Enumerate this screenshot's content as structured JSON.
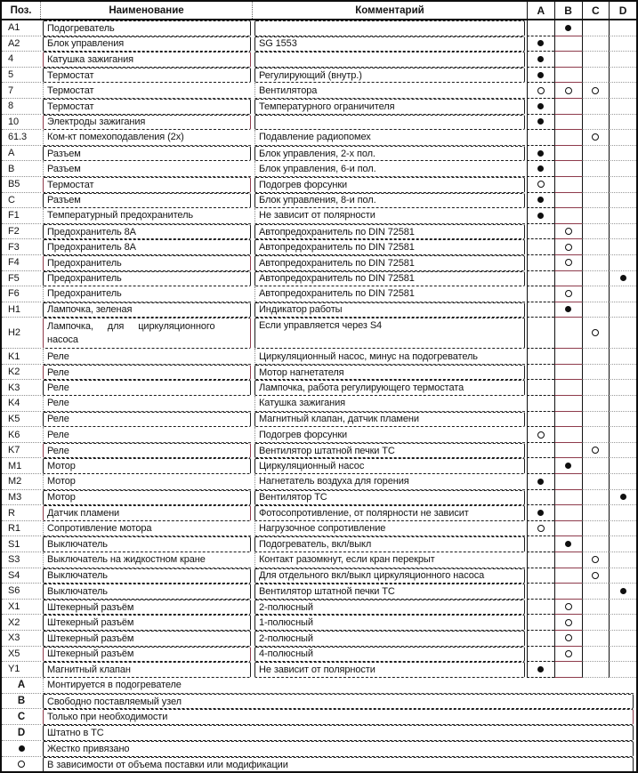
{
  "colors": {
    "line": "#1a1a1a",
    "accent_maroon": "#8e3b4c",
    "background": "#ffffff"
  },
  "table": {
    "headers": {
      "pos": "Поз.",
      "name": "Наименование",
      "comment": "Комментарий",
      "marks": [
        "A",
        "B",
        "C",
        "D"
      ]
    },
    "rows": [
      {
        "pos": "A1",
        "name": "Подогреватель",
        "comment": "",
        "marks": [
          "",
          "dot",
          "",
          ""
        ],
        "boxed": true
      },
      {
        "pos": "A2",
        "name": "Блок управления",
        "comment": "SG 1553",
        "marks": [
          "dot",
          "",
          "",
          ""
        ],
        "boxed": true
      },
      {
        "pos": "4",
        "name": "Катушка зажигания",
        "comment": "",
        "marks": [
          "dot",
          "",
          "",
          ""
        ],
        "boxed": true,
        "accent": true
      },
      {
        "pos": "5",
        "name": "Термостат",
        "comment": "Регулирующий (внутр.)",
        "marks": [
          "dot",
          "",
          "",
          ""
        ],
        "boxed": true
      },
      {
        "pos": "7",
        "name": "Термостат",
        "comment": "Вентилятора",
        "marks": [
          "circle",
          "circle",
          "circle",
          ""
        ],
        "boxed": false
      },
      {
        "pos": "8",
        "name": "Термостат",
        "comment": "Температурного ограничителя",
        "marks": [
          "dot",
          "",
          "",
          ""
        ],
        "boxed": true
      },
      {
        "pos": "10",
        "name": "Электроды зажигания",
        "comment": "",
        "marks": [
          "dot",
          "",
          "",
          ""
        ],
        "boxed": true,
        "accent": true
      },
      {
        "pos": "61.3",
        "name": "Ком-кт помехоподавления (2х)",
        "comment": "Подавление радиопомех",
        "marks": [
          "",
          "",
          "circle",
          ""
        ],
        "boxed": false
      },
      {
        "pos": "A",
        "name": "Разъем",
        "comment": "Блок управления, 2-х пол.",
        "marks": [
          "dot",
          "",
          "",
          ""
        ],
        "boxed": true
      },
      {
        "pos": "B",
        "name": "Разъем",
        "comment": "Блок управления, 6-и пол.",
        "marks": [
          "dot",
          "",
          "",
          ""
        ],
        "boxed": false
      },
      {
        "pos": "B5",
        "name": "Термостат",
        "comment": "Подогрев форсунки",
        "marks": [
          "circle",
          "",
          "",
          ""
        ],
        "boxed": true,
        "accent": true
      },
      {
        "pos": "C",
        "name": "Разъем",
        "comment": "Блок управления, 8-и пол.",
        "marks": [
          "dot",
          "",
          "",
          ""
        ],
        "boxed": true
      },
      {
        "pos": "F1",
        "name": "Температурный предохранитель",
        "comment": "Не зависит от полярности",
        "marks": [
          "dot",
          "",
          "",
          ""
        ],
        "boxed": false
      },
      {
        "pos": "F2",
        "name": "Предохранитель 8А",
        "comment": "Автопредохранитель по DIN 72581",
        "marks": [
          "",
          "circle",
          "",
          ""
        ],
        "boxed": true
      },
      {
        "pos": "F3",
        "name": "Предохранитель 8А",
        "comment": "Автопредохранитель по DIN 72581",
        "marks": [
          "",
          "circle",
          "",
          ""
        ],
        "boxed": true
      },
      {
        "pos": "F4",
        "name": "Предохранитель",
        "comment": "Автопредохранитель по DIN 72581",
        "marks": [
          "",
          "circle",
          "",
          ""
        ],
        "boxed": true,
        "accent": true
      },
      {
        "pos": "F5",
        "name": "Предохранитель",
        "comment": "Автопредохранитель по DIN 72581",
        "marks": [
          "",
          "",
          "",
          "dot"
        ],
        "boxed": true
      },
      {
        "pos": "F6",
        "name": "Предохранитель",
        "comment": "Автопредохранитель по DIN 72581",
        "marks": [
          "",
          "circle",
          "",
          ""
        ],
        "boxed": false
      },
      {
        "pos": "H1",
        "name": "Лампочка, зеленая",
        "comment": "Индикатор работы",
        "marks": [
          "",
          "dot",
          "",
          ""
        ],
        "boxed": true
      },
      {
        "pos": "H2",
        "name": "Лампочка, для циркуляционного\nнасоса",
        "comment": "Если управляется через S4",
        "marks": [
          "",
          "",
          "circle",
          ""
        ],
        "boxed": true,
        "accent": true,
        "tall": true
      },
      {
        "pos": "K1",
        "name": "Реле",
        "comment": "Циркуляционный насос, минус на подогреватель",
        "marks": [
          "",
          "",
          "",
          ""
        ],
        "boxed": false
      },
      {
        "pos": "K2",
        "name": "Реле",
        "comment": "Мотор нагнетателя",
        "marks": [
          "",
          "",
          "",
          ""
        ],
        "boxed": true,
        "accent": true
      },
      {
        "pos": "K3",
        "name": "Реле",
        "comment": "Лампочка, работа регулирующего термостата",
        "marks": [
          "",
          "",
          "",
          ""
        ],
        "boxed": true
      },
      {
        "pos": "K4",
        "name": "Реле",
        "comment": "Катушка зажигания",
        "marks": [
          "",
          "",
          "",
          ""
        ],
        "boxed": false
      },
      {
        "pos": "K5",
        "name": "Реле",
        "comment": "Магнитный клапан, датчик пламени",
        "marks": [
          "",
          "",
          "",
          ""
        ],
        "boxed": true
      },
      {
        "pos": "K6",
        "name": "Реле",
        "comment": "Подогрев форсунки",
        "marks": [
          "circle",
          "",
          "",
          ""
        ],
        "boxed": false
      },
      {
        "pos": "K7",
        "name": "Реле",
        "comment": "Вентилятор штатной печки ТС",
        "marks": [
          "",
          "",
          "circle",
          ""
        ],
        "boxed": true,
        "accent": true
      },
      {
        "pos": "M1",
        "name": "Мотор",
        "comment": "Циркуляционный насос",
        "marks": [
          "",
          "dot",
          "",
          ""
        ],
        "boxed": true
      },
      {
        "pos": "M2",
        "name": "Мотор",
        "comment": "Нагнетатель воздуха для горения",
        "marks": [
          "dot",
          "",
          "",
          ""
        ],
        "boxed": false
      },
      {
        "pos": "M3",
        "name": "Мотор",
        "comment": "Вентилятор ТС",
        "marks": [
          "",
          "",
          "",
          "dot"
        ],
        "boxed": true
      },
      {
        "pos": "R",
        "name": "Датчик пламени",
        "comment": "Фотосопротивление, от полярности не зависит",
        "marks": [
          "dot",
          "",
          "",
          ""
        ],
        "boxed": true,
        "accent": true
      },
      {
        "pos": "R1",
        "name": "Сопротивление мотора",
        "comment": "Нагрузочное сопротивление",
        "marks": [
          "circle",
          "",
          "",
          ""
        ],
        "boxed": false
      },
      {
        "pos": "S1",
        "name": "Выключатель",
        "comment": "Подогреватель, вкл/выкл",
        "marks": [
          "",
          "dot",
          "",
          ""
        ],
        "boxed": true
      },
      {
        "pos": "S3",
        "name": "Выключатель на жидкостном кране",
        "comment": "Контакт разомкнут, если кран перекрыт",
        "marks": [
          "",
          "",
          "circle",
          ""
        ],
        "boxed": false
      },
      {
        "pos": "S4",
        "name": "Выключатель",
        "comment": "Для отдельного вкл/выкл циркуляционного насоса",
        "marks": [
          "",
          "",
          "circle",
          ""
        ],
        "boxed": true
      },
      {
        "pos": "S6",
        "name": "Выключатель",
        "comment": "Вентилятор штатной печки ТС",
        "marks": [
          "",
          "",
          "",
          "dot"
        ],
        "boxed": true
      },
      {
        "pos": "X1",
        "name": "Штекерный разъём",
        "comment": "2-полюсный",
        "marks": [
          "",
          "circle",
          "",
          ""
        ],
        "boxed": true
      },
      {
        "pos": "X2",
        "name": "Штекерный разъём",
        "comment": "1-полюсный",
        "marks": [
          "",
          "circle",
          "",
          ""
        ],
        "boxed": true
      },
      {
        "pos": "X3",
        "name": "Штекерный разъём",
        "comment": "2-полюсный",
        "marks": [
          "",
          "circle",
          "",
          ""
        ],
        "boxed": true
      },
      {
        "pos": "X5",
        "name": "Штекерный разъём",
        "comment": "4-полюсный",
        "marks": [
          "",
          "circle",
          "",
          ""
        ],
        "boxed": true,
        "accent": true
      },
      {
        "pos": "Y1",
        "name": "Магнитный клапан",
        "comment": "Не зависит от полярности",
        "marks": [
          "dot",
          "",
          "",
          ""
        ],
        "boxed": true
      }
    ],
    "legend": [
      {
        "symbol": "A",
        "text": "Монтируется в подогревателе",
        "boxed": false
      },
      {
        "symbol": "B",
        "text": "Свободно поставляемый узел",
        "boxed": true
      },
      {
        "symbol": "C",
        "text": "Только при необходимости",
        "boxed": true,
        "accent": true
      },
      {
        "symbol": "D",
        "text": "Штатно в ТС",
        "boxed": true
      },
      {
        "symbol": "●",
        "icon": "dot",
        "text": "Жестко привязано",
        "boxed": true
      },
      {
        "symbol": "○",
        "icon": "circle",
        "text": "В зависимости от объема поставки или модификации",
        "boxed": true
      }
    ]
  }
}
